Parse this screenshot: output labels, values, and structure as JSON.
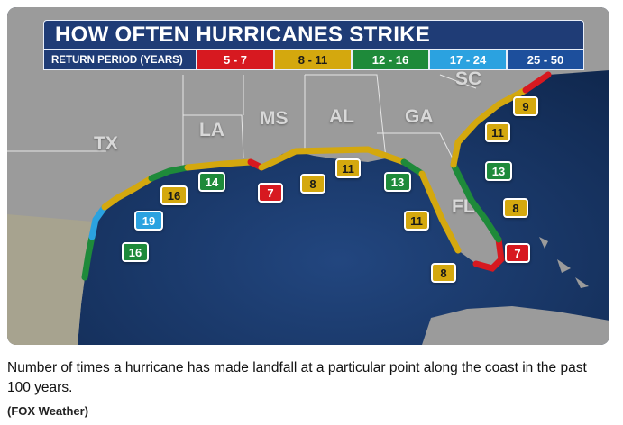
{
  "map": {
    "title": "HOW OFTEN HURRICANES STRIKE",
    "legend": {
      "label": "RETURN PERIOD (YEARS)",
      "ranges": [
        {
          "label": "5 - 7",
          "color": "#d71920"
        },
        {
          "label": "8 - 11",
          "color": "#d4a80e"
        },
        {
          "label": "12 - 16",
          "color": "#1e8a3a"
        },
        {
          "label": "17 - 24",
          "color": "#2ba2e0"
        },
        {
          "label": "25 - 50",
          "color": "#1d4f9c"
        }
      ]
    },
    "states": [
      "TX",
      "LA",
      "MS",
      "AL",
      "GA",
      "SC",
      "FL"
    ],
    "return_periods": [
      {
        "value": "9",
        "category": "8 - 11"
      },
      {
        "value": "11",
        "category": "8 - 11"
      },
      {
        "value": "13",
        "category": "12 - 16"
      },
      {
        "value": "8",
        "category": "8 - 11"
      },
      {
        "value": "7",
        "category": "5 - 7"
      },
      {
        "value": "11",
        "category": "8 - 11"
      },
      {
        "value": "8",
        "category": "8 - 11"
      },
      {
        "value": "13",
        "category": "12 - 16"
      },
      {
        "value": "11",
        "category": "8 - 11"
      },
      {
        "value": "8",
        "category": "8 - 11"
      },
      {
        "value": "7",
        "category": "5 - 7"
      },
      {
        "value": "14",
        "category": "12 - 16"
      },
      {
        "value": "16",
        "category": "12 - 16"
      },
      {
        "value": "19",
        "category": "17 - 24"
      },
      {
        "value": "16",
        "category": "12 - 16"
      }
    ],
    "colors": {
      "ocean": "#1a3a6e",
      "land": "#9a9a9a",
      "title_bar": "#1f3c76"
    }
  },
  "caption": "Number of times a hurricane has made landfall at a particular point along the coast in the past 100 years.",
  "credit": "(FOX Weather)"
}
